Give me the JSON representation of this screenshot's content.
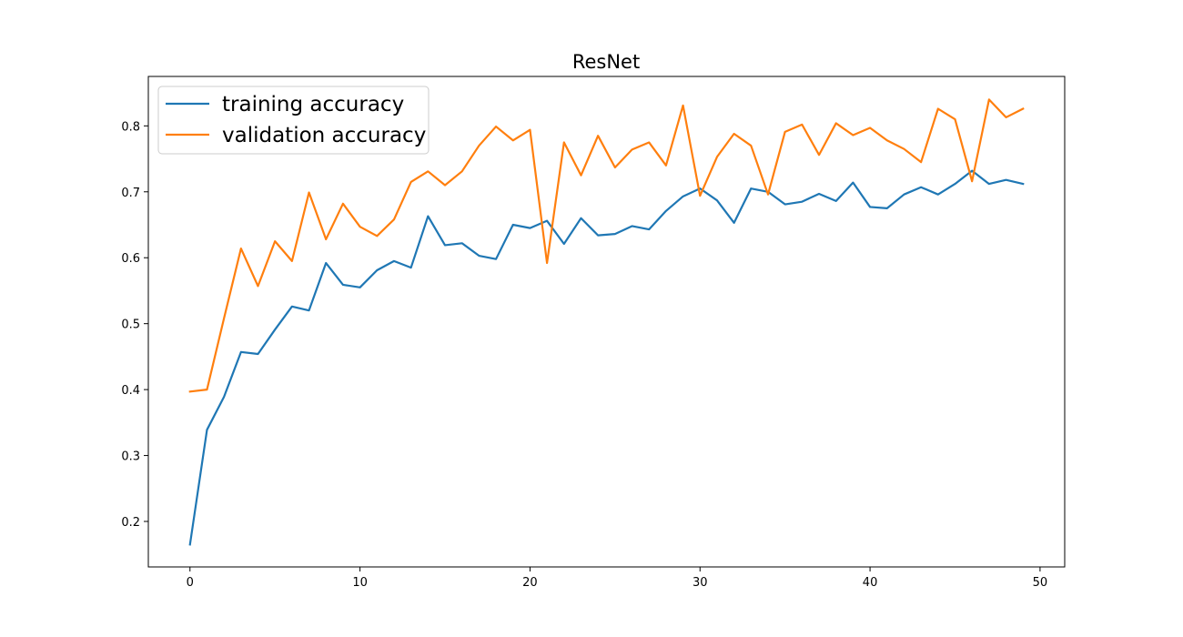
{
  "chart_data": {
    "type": "line",
    "title": "ResNet",
    "xlabel": "",
    "ylabel": "",
    "xlim": [
      -2.45,
      51.45
    ],
    "ylim": [
      0.131,
      0.875
    ],
    "xticks": [
      0,
      10,
      20,
      30,
      40,
      50
    ],
    "yticks": [
      0.2,
      0.3,
      0.4,
      0.5,
      0.6,
      0.7,
      0.8
    ],
    "grid": false,
    "legend_position": "top-left",
    "x": [
      0,
      1,
      2,
      3,
      4,
      5,
      6,
      7,
      8,
      9,
      10,
      11,
      12,
      13,
      14,
      15,
      16,
      17,
      18,
      19,
      20,
      21,
      22,
      23,
      24,
      25,
      26,
      27,
      28,
      29,
      30,
      31,
      32,
      33,
      34,
      35,
      36,
      37,
      38,
      39,
      40,
      41,
      42,
      43,
      44,
      45,
      46,
      47,
      48,
      49
    ],
    "series": [
      {
        "name": "training accuracy",
        "color": "#1f77b4",
        "values": [
          0.165,
          0.339,
          0.389,
          0.457,
          0.454,
          0.491,
          0.526,
          0.52,
          0.592,
          0.559,
          0.555,
          0.581,
          0.595,
          0.585,
          0.663,
          0.619,
          0.622,
          0.603,
          0.598,
          0.65,
          0.645,
          0.656,
          0.621,
          0.66,
          0.634,
          0.636,
          0.648,
          0.643,
          0.671,
          0.693,
          0.705,
          0.687,
          0.653,
          0.705,
          0.7,
          0.681,
          0.685,
          0.697,
          0.686,
          0.714,
          0.677,
          0.675,
          0.696,
          0.707,
          0.696,
          0.712,
          0.732,
          0.712,
          0.718,
          0.712
        ]
      },
      {
        "name": "validation accuracy",
        "color": "#ff7f0e",
        "values": [
          0.397,
          0.4,
          0.508,
          0.614,
          0.557,
          0.625,
          0.595,
          0.699,
          0.628,
          0.682,
          0.647,
          0.633,
          0.658,
          0.715,
          0.731,
          0.71,
          0.731,
          0.77,
          0.799,
          0.778,
          0.794,
          0.592,
          0.775,
          0.725,
          0.785,
          0.737,
          0.764,
          0.775,
          0.74,
          0.831,
          0.694,
          0.753,
          0.788,
          0.77,
          0.696,
          0.791,
          0.802,
          0.756,
          0.804,
          0.786,
          0.797,
          0.778,
          0.765,
          0.745,
          0.826,
          0.81,
          0.716,
          0.84,
          0.813,
          0.826
        ]
      }
    ]
  }
}
